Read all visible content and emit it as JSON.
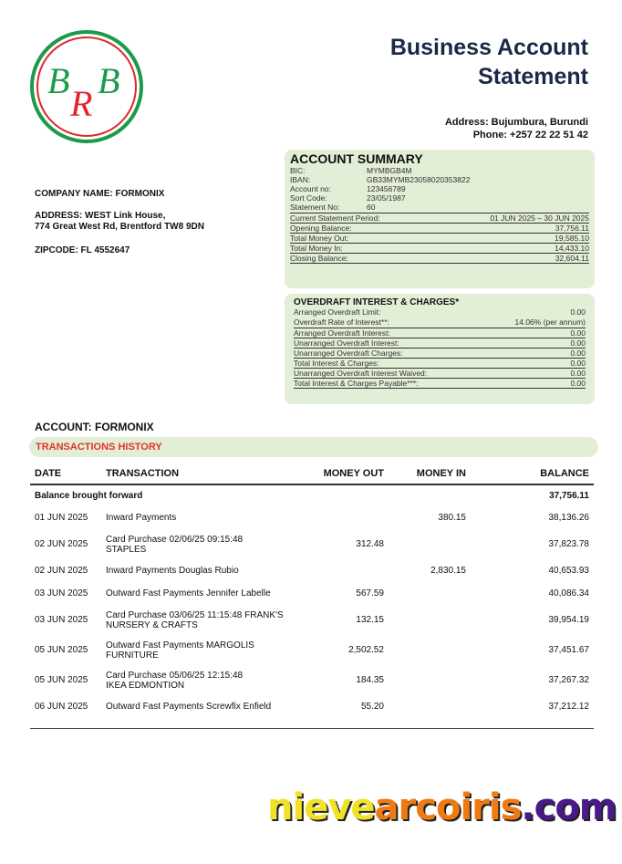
{
  "logo": {
    "text": "BRB",
    "colors": {
      "green": "#1a9a4a",
      "red": "#e0262d"
    }
  },
  "header": {
    "title_line1": "Business Account",
    "title_line2": "Statement",
    "address": "Address: Bujumbura, Burundi",
    "phone": "Phone:  +257 22 22 51 42"
  },
  "company": {
    "name": "COMPANY NAME: FORMONIX",
    "address_line1": "ADDRESS: WEST Link House,",
    "address_line2": "774 Great West Rd, Brentford TW8 9DN",
    "zipcode": "ZIPCODE: FL 4552647"
  },
  "summary": {
    "title": "ACCOUNT SUMMARY",
    "details": [
      {
        "label": "BIC:",
        "value": "MYMBGB4M"
      },
      {
        "label": "IBAN:",
        "value": "GB33MYMB23058020353822"
      },
      {
        "label": "Account no:",
        "value": "123456789"
      },
      {
        "label": "Sort Code:",
        "value": "23/05/1987"
      },
      {
        "label": "Statement No:",
        "value": "60"
      }
    ],
    "rows": [
      {
        "label": "Current Statement Period:",
        "value": "01 JUN 2025 – 30 JUN 2025"
      },
      {
        "label": "Opening Balance:",
        "value": "37,756.11"
      },
      {
        "label": "Total Money Out:",
        "value": "19,585.10"
      },
      {
        "label": "Total Money In:",
        "value": "14,433.10"
      },
      {
        "label": "Closing Balance:",
        "value": "32,604.11"
      }
    ]
  },
  "overdraft": {
    "title": "OVERDRAFT INTEREST & CHARGES*",
    "top": [
      {
        "label": "Arranged Overdraft Limit:",
        "value": "0.00"
      },
      {
        "label": "Overdraft Rate of Interest**:",
        "value": "14.06% (per annum)"
      }
    ],
    "rows": [
      {
        "label": "Arranged Overdraft Interest:",
        "value": "0.00"
      },
      {
        "label": "Unarranged Overdraft Interest:",
        "value": "0.00"
      },
      {
        "label": "Unarranged Overdraft Charges:",
        "value": "0.00"
      },
      {
        "label": "Total Interest & Charges:",
        "value": "0.00"
      },
      {
        "label": "Unarranged Overdraft Interest Waived:",
        "value": "0.00"
      },
      {
        "label": "Total Interest & Charges Payable***:",
        "value": "0.00"
      }
    ]
  },
  "account_label": "ACCOUNT: FORMONIX",
  "history_title": "TRANSACTIONS HISTORY",
  "table": {
    "headers": [
      "DATE",
      "TRANSACTION",
      "MONEY OUT",
      "MONEY IN",
      "BALANCE"
    ],
    "bf_label": "Balance brought forward",
    "bf_value": "37,756.11",
    "rows": [
      {
        "date": "01 JUN 2025",
        "desc1": "Inward Payments",
        "desc2": "",
        "out": "",
        "in": "380.15",
        "bal": "38,136.26"
      },
      {
        "date": "02 JUN 2025",
        "desc1": "Card Purchase 02/06/25 09:15:48",
        "desc2": "STAPLES",
        "out": "312.48",
        "in": "",
        "bal": "37,823.78"
      },
      {
        "date": "02 JUN 2025",
        "desc1": "Inward Payments Douglas Rubio",
        "desc2": "",
        "out": "",
        "in": "2,830.15",
        "bal": "40,653.93"
      },
      {
        "date": "03 JUN 2025",
        "desc1": "Outward Fast Payments Jennifer Labelle",
        "desc2": "",
        "out": "567.59",
        "in": "",
        "bal": "40,086.34"
      },
      {
        "date": "03 JUN 2025",
        "desc1": "Card Purchase 03/06/25 11:15:48 FRANK'S",
        "desc2": "NURSERY & CRAFTS",
        "out": "132.15",
        "in": "",
        "bal": "39,954.19"
      },
      {
        "date": "05 JUN 2025",
        "desc1": "Outward Fast Payments MARGOLIS",
        "desc2": "FURNITURE",
        "out": "2,502.52",
        "in": "",
        "bal": "37,451.67"
      },
      {
        "date": "05 JUN 2025",
        "desc1": "Card Purchase 05/06/25 12:15:48",
        "desc2": "IKEA EDMONTION",
        "out": "184.35",
        "in": "",
        "bal": "37,267.32"
      },
      {
        "date": "06 JUN 2025",
        "desc1": "Outward Fast Payments Screwfix Enfield",
        "desc2": "",
        "out": "55.20",
        "in": "",
        "bal": "37,212.12"
      }
    ]
  },
  "watermark": {
    "part1": "nieve",
    "part2": "arcoiris",
    "part3": ".com",
    "colors": [
      "#f2e227",
      "#f07a12",
      "#4a1a8a"
    ]
  }
}
